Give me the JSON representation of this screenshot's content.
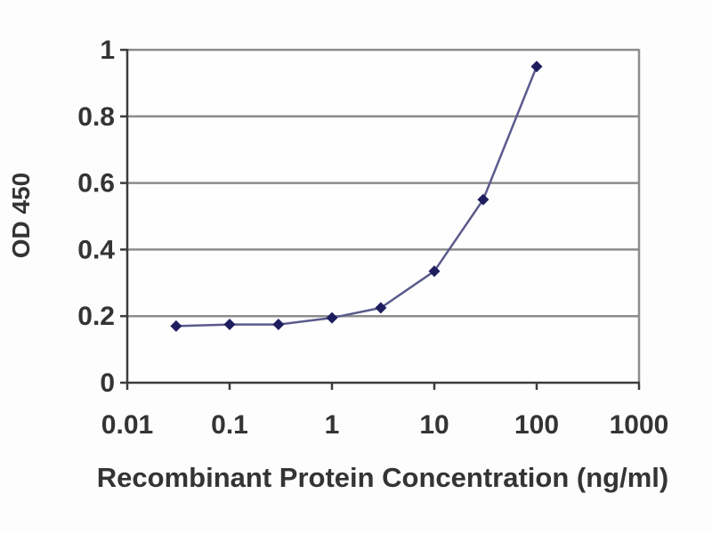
{
  "chart_data": {
    "type": "line",
    "title": "",
    "xlabel": "Recombinant Protein Concentration (ng/ml)",
    "ylabel": "OD 450",
    "x_scale": "log",
    "xlim": [
      0.01,
      1000
    ],
    "ylim": [
      0,
      1
    ],
    "x": [
      0.03,
      0.1,
      0.3,
      1,
      3,
      10,
      30,
      100
    ],
    "values": [
      0.17,
      0.175,
      0.175,
      0.195,
      0.225,
      0.335,
      0.55,
      0.95
    ],
    "x_ticks": [
      {
        "value": 0.01,
        "label": "0.01"
      },
      {
        "value": 0.1,
        "label": "0.1"
      },
      {
        "value": 1,
        "label": "1"
      },
      {
        "value": 10,
        "label": "10"
      },
      {
        "value": 100,
        "label": "100"
      },
      {
        "value": 1000,
        "label": "1000"
      }
    ],
    "y_ticks": [
      {
        "value": 0,
        "label": "0"
      },
      {
        "value": 0.2,
        "label": "0.2"
      },
      {
        "value": 0.4,
        "label": "0.4"
      },
      {
        "value": 0.6,
        "label": "0.6"
      },
      {
        "value": 0.8,
        "label": "0.8"
      },
      {
        "value": 1,
        "label": "1"
      }
    ],
    "grid": "horizontal",
    "legend": "none",
    "marker": "diamond",
    "colors": {
      "marker": "#1e1e5f",
      "line": "#5a5a8c",
      "gridline": "#8c8c8c",
      "axis": "#3c3c3c",
      "text": "#343434",
      "plot_bg": "#fefefe"
    }
  }
}
